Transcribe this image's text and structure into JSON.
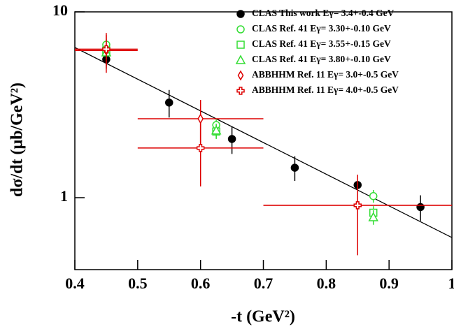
{
  "chart_data": {
    "type": "scatter",
    "x_label": "-t (GeV²)",
    "y_label": "dσ/dt (μb/GeV²)",
    "xlim": [
      0.4,
      1.0
    ],
    "xticks": [
      0.4,
      0.5,
      0.6,
      0.7,
      0.8,
      0.9,
      1
    ],
    "ylim": [
      0.41,
      10
    ],
    "yticks": [
      1,
      10
    ],
    "y_log": true,
    "series": [
      {
        "name": "CLAS This work Eγ= 3.4+-0.4 GeV",
        "color": "#000000",
        "marker": "circle-filled",
        "x": [
          0.45,
          0.55,
          0.65,
          0.75,
          0.85,
          0.95
        ],
        "values": [
          5.55,
          3.25,
          2.07,
          1.45,
          1.17,
          0.89
        ],
        "yerr": [
          0.6,
          0.55,
          0.35,
          0.22,
          0.12,
          0.14
        ]
      },
      {
        "name": "CLAS Ref. 41 Eγ= 3.30+-0.10 GeV",
        "color": "#33dd33",
        "marker": "circle-open",
        "x": [
          0.45,
          0.625,
          0.875
        ],
        "values": [
          6.66,
          2.46,
          1.02
        ],
        "yerr": [
          0.5,
          0.2,
          0.08
        ]
      },
      {
        "name": "CLAS Ref. 41 Eγ= 3.55+-0.15 GeV",
        "color": "#33dd33",
        "marker": "square-open",
        "x": [
          0.45,
          0.625,
          0.875
        ],
        "values": [
          6.2,
          2.27,
          0.83
        ],
        "yerr": [
          0.45,
          0.2,
          0.07
        ]
      },
      {
        "name": "CLAS Ref. 41 Eγ= 3.80+-0.10 GeV",
        "color": "#33dd33",
        "marker": "triangle-open",
        "x": [
          0.45,
          0.625,
          0.875
        ],
        "values": [
          6.05,
          2.3,
          0.785
        ],
        "yerr": [
          0.45,
          0.2,
          0.07
        ]
      },
      {
        "name": "ABBHHM Ref. 11 Eγ= 3.0+-0.5 GeV",
        "color": "#dd0000",
        "marker": "diamond-open",
        "x": [
          0.45,
          0.6,
          0.85
        ],
        "values": [
          6.2,
          2.66,
          0.91
        ],
        "yerr": [
          1.5,
          0.7,
          0.35
        ],
        "xerr": [
          0.05,
          0.1,
          0.15
        ]
      },
      {
        "name": "ABBHHM Ref. 11 Eγ= 4.0+-0.5 GeV",
        "color": "#dd0000",
        "marker": "cross-open",
        "x": [
          0.45,
          0.6,
          0.85
        ],
        "values": [
          6.3,
          1.85,
          0.91
        ],
        "yerr": [
          1.2,
          0.7,
          0.42
        ],
        "xerr": [
          0.05,
          0.1,
          0.15
        ]
      }
    ],
    "fit": {
      "color": "#000000",
      "x": [
        0.4,
        1.0
      ],
      "values": [
        6.43,
        0.61
      ]
    }
  }
}
